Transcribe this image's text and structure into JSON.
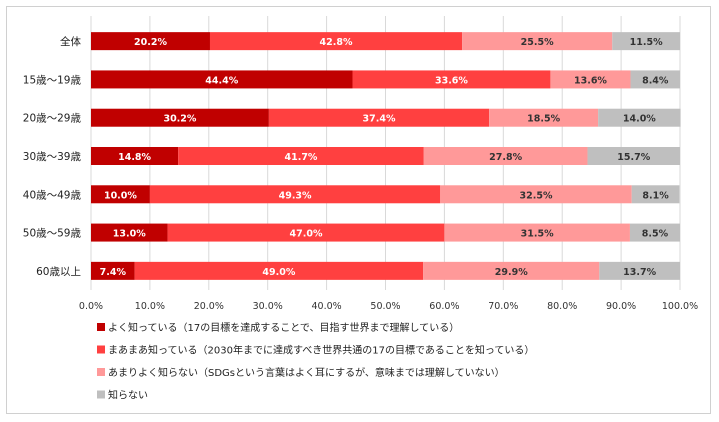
{
  "chart_data": {
    "type": "bar",
    "stacked": true,
    "orientation": "horizontal",
    "categories": [
      "全体",
      "15歳～19歳",
      "20歳～29歳",
      "30歳～39歳",
      "40歳～49歳",
      "50歳～59歳",
      "60歳以上"
    ],
    "series": [
      {
        "name": "よく知っている（17の目標を達成することで、目指す世界まで理解している）",
        "color": "#c00000",
        "values": [
          20.2,
          44.4,
          30.2,
          14.8,
          10.0,
          13.0,
          7.4
        ]
      },
      {
        "name": "まあまあ知っている（2030年までに達成すべき世界共通の17の目標であることを知っている）",
        "color": "#ff4040",
        "values": [
          42.8,
          33.6,
          37.4,
          41.7,
          49.3,
          47.0,
          49.0
        ]
      },
      {
        "name": "あまりよく知らない（SDGsという言葉はよく耳にするが、意味までは理解していない）",
        "color": "#ff9999",
        "values": [
          25.5,
          13.6,
          18.5,
          27.8,
          32.5,
          31.5,
          29.9
        ]
      },
      {
        "name": "知らない",
        "color": "#bfbfbf",
        "values": [
          11.5,
          8.4,
          14.0,
          15.7,
          8.1,
          8.5,
          13.7
        ]
      }
    ],
    "xlim": [
      0,
      100
    ],
    "xticks": [
      "0.0%",
      "10.0%",
      "20.0%",
      "30.0%",
      "40.0%",
      "50.0%",
      "60.0%",
      "70.0%",
      "80.0%",
      "90.0%",
      "100.0%"
    ],
    "grid": true,
    "legend_position": "bottom-left",
    "colors": {
      "grid": "#d9d9d9",
      "dark_label_text": "#ffffff",
      "light_label_text": "#333333"
    }
  }
}
